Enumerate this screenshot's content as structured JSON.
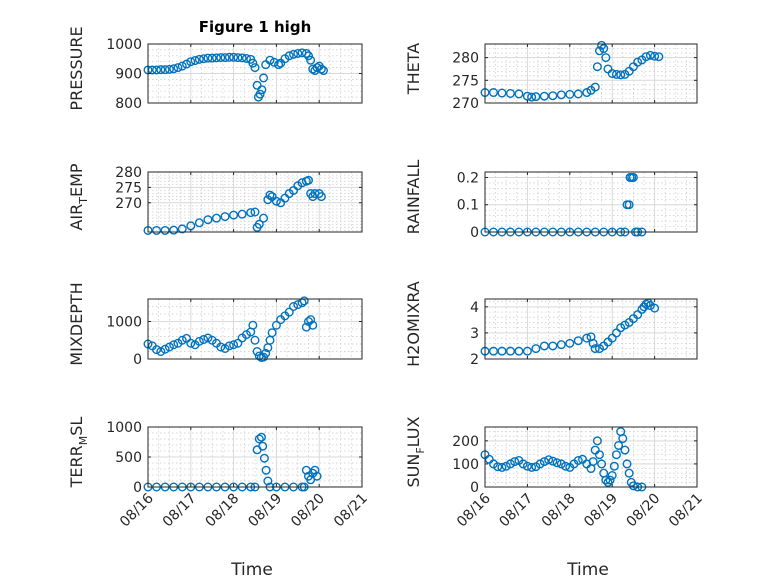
{
  "chart_data": [
    {
      "type": "scatter",
      "title": "Figure 1 high",
      "ylabel": "PRESSURE",
      "ylabel_sub": "",
      "ylabel_tail": "",
      "ylim": [
        800,
        1000
      ],
      "yticks": [
        800,
        900,
        1000
      ],
      "points": [
        [
          0,
          912
        ],
        [
          0.1,
          912
        ],
        [
          0.2,
          912
        ],
        [
          0.3,
          913
        ],
        [
          0.4,
          913
        ],
        [
          0.5,
          914
        ],
        [
          0.6,
          916
        ],
        [
          0.7,
          920
        ],
        [
          0.8,
          925
        ],
        [
          0.9,
          932
        ],
        [
          1.0,
          940
        ],
        [
          1.1,
          944
        ],
        [
          1.2,
          948
        ],
        [
          1.3,
          950
        ],
        [
          1.4,
          952
        ],
        [
          1.5,
          952
        ],
        [
          1.6,
          953
        ],
        [
          1.7,
          954
        ],
        [
          1.8,
          954
        ],
        [
          1.9,
          955
        ],
        [
          2.0,
          955
        ],
        [
          2.1,
          954
        ],
        [
          2.2,
          953
        ],
        [
          2.3,
          951
        ],
        [
          2.4,
          948
        ],
        [
          2.45,
          935
        ],
        [
          2.5,
          920
        ],
        [
          2.55,
          860
        ],
        [
          2.58,
          820
        ],
        [
          2.62,
          830
        ],
        [
          2.66,
          845
        ],
        [
          2.7,
          885
        ],
        [
          2.75,
          930
        ],
        [
          2.85,
          945
        ],
        [
          2.95,
          938
        ],
        [
          3.05,
          930
        ],
        [
          3.1,
          935
        ],
        [
          3.2,
          950
        ],
        [
          3.3,
          960
        ],
        [
          3.4,
          965
        ],
        [
          3.5,
          968
        ],
        [
          3.6,
          970
        ],
        [
          3.7,
          968
        ],
        [
          3.75,
          960
        ],
        [
          3.8,
          945
        ],
        [
          3.85,
          915
        ],
        [
          3.9,
          910
        ],
        [
          3.95,
          920
        ],
        [
          4.0,
          925
        ],
        [
          4.05,
          915
        ],
        [
          4.1,
          910
        ]
      ]
    },
    {
      "type": "scatter",
      "title": "",
      "ylabel": "THETA",
      "ylabel_sub": "",
      "ylabel_tail": "",
      "ylim": [
        270,
        283
      ],
      "yticks": [
        270,
        275,
        280
      ],
      "points": [
        [
          0,
          272.3
        ],
        [
          0.2,
          272.3
        ],
        [
          0.4,
          272.2
        ],
        [
          0.6,
          272.1
        ],
        [
          0.8,
          272
        ],
        [
          1.0,
          271.5
        ],
        [
          1.1,
          271.3
        ],
        [
          1.2,
          271.4
        ],
        [
          1.4,
          271.5
        ],
        [
          1.6,
          271.6
        ],
        [
          1.8,
          271.8
        ],
        [
          2.0,
          271.9
        ],
        [
          2.2,
          272.0
        ],
        [
          2.4,
          272.3
        ],
        [
          2.5,
          272.8
        ],
        [
          2.6,
          273.5
        ],
        [
          2.65,
          278
        ],
        [
          2.7,
          281.5
        ],
        [
          2.75,
          282.7
        ],
        [
          2.8,
          282
        ],
        [
          2.85,
          280
        ],
        [
          2.9,
          277.5
        ],
        [
          3.0,
          276.5
        ],
        [
          3.1,
          276.3
        ],
        [
          3.2,
          276.2
        ],
        [
          3.3,
          276.3
        ],
        [
          3.4,
          277
        ],
        [
          3.5,
          278
        ],
        [
          3.6,
          279
        ],
        [
          3.7,
          279.5
        ],
        [
          3.8,
          280.2
        ],
        [
          3.9,
          280.5
        ],
        [
          4.0,
          280.3
        ],
        [
          4.1,
          280.2
        ]
      ]
    },
    {
      "type": "scatter",
      "title": "",
      "ylabel": "AIR",
      "ylabel_sub": "T",
      "ylabel_tail": "EMP",
      "ylim": [
        260.5,
        280
      ],
      "yticks": [
        270,
        275,
        280
      ],
      "points": [
        [
          0,
          261
        ],
        [
          0.2,
          261
        ],
        [
          0.4,
          261
        ],
        [
          0.6,
          261.1
        ],
        [
          0.8,
          261.5
        ],
        [
          1.0,
          262.5
        ],
        [
          1.2,
          263.5
        ],
        [
          1.4,
          264.5
        ],
        [
          1.6,
          265
        ],
        [
          1.8,
          265.5
        ],
        [
          2.0,
          266
        ],
        [
          2.2,
          266.3
        ],
        [
          2.4,
          266.8
        ],
        [
          2.5,
          267
        ],
        [
          2.55,
          262
        ],
        [
          2.6,
          263
        ],
        [
          2.7,
          265
        ],
        [
          2.8,
          271
        ],
        [
          2.85,
          272.5
        ],
        [
          2.9,
          272
        ],
        [
          3.0,
          270.5
        ],
        [
          3.1,
          270
        ],
        [
          3.2,
          271.5
        ],
        [
          3.3,
          273
        ],
        [
          3.4,
          274
        ],
        [
          3.5,
          275.5
        ],
        [
          3.6,
          276.5
        ],
        [
          3.7,
          277
        ],
        [
          3.75,
          277.3
        ],
        [
          3.8,
          273
        ],
        [
          3.85,
          272
        ],
        [
          3.9,
          273
        ],
        [
          4.0,
          273
        ],
        [
          4.05,
          272
        ]
      ]
    },
    {
      "type": "scatter",
      "title": "",
      "ylabel": "RAINFALL",
      "ylabel_sub": "",
      "ylabel_tail": "",
      "ylim": [
        0,
        0.22
      ],
      "yticks": [
        0,
        0.1,
        0.2
      ],
      "points": [
        [
          0,
          0
        ],
        [
          0.2,
          0
        ],
        [
          0.4,
          0
        ],
        [
          0.6,
          0
        ],
        [
          0.8,
          0
        ],
        [
          1.0,
          0
        ],
        [
          1.2,
          0
        ],
        [
          1.4,
          0
        ],
        [
          1.6,
          0
        ],
        [
          1.8,
          0
        ],
        [
          2.0,
          0
        ],
        [
          2.2,
          0
        ],
        [
          2.4,
          0
        ],
        [
          2.6,
          0
        ],
        [
          2.8,
          0
        ],
        [
          3.0,
          0
        ],
        [
          3.2,
          0
        ],
        [
          3.3,
          0
        ],
        [
          3.35,
          0.1
        ],
        [
          3.4,
          0.1
        ],
        [
          3.42,
          0.2
        ],
        [
          3.46,
          0.2
        ],
        [
          3.5,
          0.2
        ],
        [
          3.55,
          0
        ],
        [
          3.6,
          0
        ],
        [
          3.7,
          0
        ]
      ]
    },
    {
      "type": "scatter",
      "title": "",
      "ylabel": "MIXDEPTH",
      "ylabel_sub": "",
      "ylabel_tail": "",
      "ylim": [
        0,
        1600
      ],
      "yticks": [
        0,
        1000
      ],
      "points": [
        [
          0,
          400
        ],
        [
          0.1,
          350
        ],
        [
          0.2,
          250
        ],
        [
          0.3,
          200
        ],
        [
          0.4,
          260
        ],
        [
          0.5,
          320
        ],
        [
          0.6,
          380
        ],
        [
          0.7,
          420
        ],
        [
          0.8,
          500
        ],
        [
          0.9,
          550
        ],
        [
          1.0,
          420
        ],
        [
          1.1,
          380
        ],
        [
          1.2,
          470
        ],
        [
          1.3,
          520
        ],
        [
          1.4,
          560
        ],
        [
          1.5,
          500
        ],
        [
          1.6,
          420
        ],
        [
          1.7,
          320
        ],
        [
          1.8,
          280
        ],
        [
          1.9,
          350
        ],
        [
          2.0,
          380
        ],
        [
          2.1,
          420
        ],
        [
          2.2,
          560
        ],
        [
          2.3,
          650
        ],
        [
          2.4,
          720
        ],
        [
          2.45,
          900
        ],
        [
          2.5,
          500
        ],
        [
          2.55,
          200
        ],
        [
          2.6,
          80
        ],
        [
          2.65,
          40
        ],
        [
          2.7,
          50
        ],
        [
          2.75,
          150
        ],
        [
          2.8,
          300
        ],
        [
          2.85,
          500
        ],
        [
          2.9,
          700
        ],
        [
          3.0,
          900
        ],
        [
          3.1,
          1050
        ],
        [
          3.2,
          1150
        ],
        [
          3.3,
          1250
        ],
        [
          3.4,
          1400
        ],
        [
          3.5,
          1450
        ],
        [
          3.6,
          1500
        ],
        [
          3.65,
          1550
        ],
        [
          3.7,
          850
        ],
        [
          3.75,
          1000
        ],
        [
          3.8,
          1050
        ],
        [
          3.85,
          900
        ]
      ]
    },
    {
      "type": "scatter",
      "title": "",
      "ylabel": "H2OMIXRA",
      "ylabel_sub": "",
      "ylabel_tail": "",
      "ylim": [
        2,
        4.3
      ],
      "yticks": [
        2,
        3,
        4
      ],
      "points": [
        [
          0,
          2.3
        ],
        [
          0.2,
          2.3
        ],
        [
          0.4,
          2.3
        ],
        [
          0.6,
          2.3
        ],
        [
          0.8,
          2.3
        ],
        [
          1.0,
          2.3
        ],
        [
          1.2,
          2.4
        ],
        [
          1.4,
          2.5
        ],
        [
          1.6,
          2.5
        ],
        [
          1.8,
          2.55
        ],
        [
          2.0,
          2.6
        ],
        [
          2.2,
          2.7
        ],
        [
          2.4,
          2.8
        ],
        [
          2.5,
          2.85
        ],
        [
          2.55,
          2.6
        ],
        [
          2.6,
          2.4
        ],
        [
          2.7,
          2.4
        ],
        [
          2.8,
          2.5
        ],
        [
          2.9,
          2.65
        ],
        [
          3.0,
          2.8
        ],
        [
          3.1,
          3.0
        ],
        [
          3.2,
          3.2
        ],
        [
          3.3,
          3.3
        ],
        [
          3.4,
          3.4
        ],
        [
          3.5,
          3.55
        ],
        [
          3.6,
          3.7
        ],
        [
          3.7,
          3.9
        ],
        [
          3.75,
          4.0
        ],
        [
          3.8,
          4.1
        ],
        [
          3.85,
          4.15
        ],
        [
          3.9,
          4.05
        ],
        [
          4.0,
          3.95
        ]
      ]
    },
    {
      "type": "scatter",
      "title": "",
      "ylabel": "TERR",
      "ylabel_sub": "M",
      "ylabel_tail": "SL",
      "xlabel": "Time",
      "xticklabels": [
        "08/16",
        "08/17",
        "08/18",
        "08/19",
        "08/20",
        "08/21"
      ],
      "ylim": [
        0,
        1000
      ],
      "yticks": [
        0,
        500,
        1000
      ],
      "points": [
        [
          0,
          0
        ],
        [
          0.2,
          0
        ],
        [
          0.4,
          0
        ],
        [
          0.6,
          0
        ],
        [
          0.8,
          0
        ],
        [
          1.0,
          0
        ],
        [
          1.2,
          0
        ],
        [
          1.4,
          0
        ],
        [
          1.6,
          0
        ],
        [
          1.8,
          0
        ],
        [
          2.0,
          0
        ],
        [
          2.2,
          0
        ],
        [
          2.4,
          0
        ],
        [
          2.5,
          0
        ],
        [
          2.55,
          620
        ],
        [
          2.6,
          800
        ],
        [
          2.65,
          830
        ],
        [
          2.68,
          680
        ],
        [
          2.72,
          480
        ],
        [
          2.76,
          280
        ],
        [
          2.8,
          100
        ],
        [
          2.85,
          0
        ],
        [
          3.0,
          0
        ],
        [
          3.2,
          0
        ],
        [
          3.4,
          0
        ],
        [
          3.6,
          0
        ],
        [
          3.65,
          0
        ],
        [
          3.7,
          280
        ],
        [
          3.75,
          180
        ],
        [
          3.8,
          120
        ],
        [
          3.85,
          230
        ],
        [
          3.9,
          280
        ],
        [
          3.95,
          180
        ]
      ]
    },
    {
      "type": "scatter",
      "title": "",
      "ylabel": "SUN",
      "ylabel_sub": "F",
      "ylabel_tail": "LUX",
      "xlabel": "Time",
      "xticklabels": [
        "08/16",
        "08/17",
        "08/18",
        "08/19",
        "08/20",
        "08/21"
      ],
      "ylim": [
        0,
        260
      ],
      "yticks": [
        0,
        100,
        200
      ],
      "points": [
        [
          0,
          140
        ],
        [
          0.1,
          120
        ],
        [
          0.2,
          100
        ],
        [
          0.3,
          88
        ],
        [
          0.4,
          85
        ],
        [
          0.5,
          90
        ],
        [
          0.6,
          100
        ],
        [
          0.7,
          110
        ],
        [
          0.8,
          115
        ],
        [
          0.9,
          100
        ],
        [
          1.0,
          90
        ],
        [
          1.1,
          85
        ],
        [
          1.2,
          88
        ],
        [
          1.3,
          100
        ],
        [
          1.4,
          110
        ],
        [
          1.5,
          118
        ],
        [
          1.6,
          112
        ],
        [
          1.7,
          105
        ],
        [
          1.8,
          100
        ],
        [
          1.9,
          90
        ],
        [
          2.0,
          85
        ],
        [
          2.1,
          100
        ],
        [
          2.2,
          115
        ],
        [
          2.3,
          120
        ],
        [
          2.4,
          100
        ],
        [
          2.5,
          80
        ],
        [
          2.55,
          110
        ],
        [
          2.6,
          160
        ],
        [
          2.65,
          200
        ],
        [
          2.7,
          140
        ],
        [
          2.75,
          100
        ],
        [
          2.8,
          60
        ],
        [
          2.85,
          30
        ],
        [
          2.9,
          20
        ],
        [
          2.95,
          30
        ],
        [
          3.0,
          50
        ],
        [
          3.05,
          90
        ],
        [
          3.1,
          140
        ],
        [
          3.15,
          180
        ],
        [
          3.2,
          240
        ],
        [
          3.25,
          210
        ],
        [
          3.3,
          160
        ],
        [
          3.35,
          100
        ],
        [
          3.4,
          60
        ],
        [
          3.45,
          20
        ],
        [
          3.5,
          5
        ],
        [
          3.6,
          0
        ],
        [
          3.7,
          0
        ]
      ]
    }
  ]
}
